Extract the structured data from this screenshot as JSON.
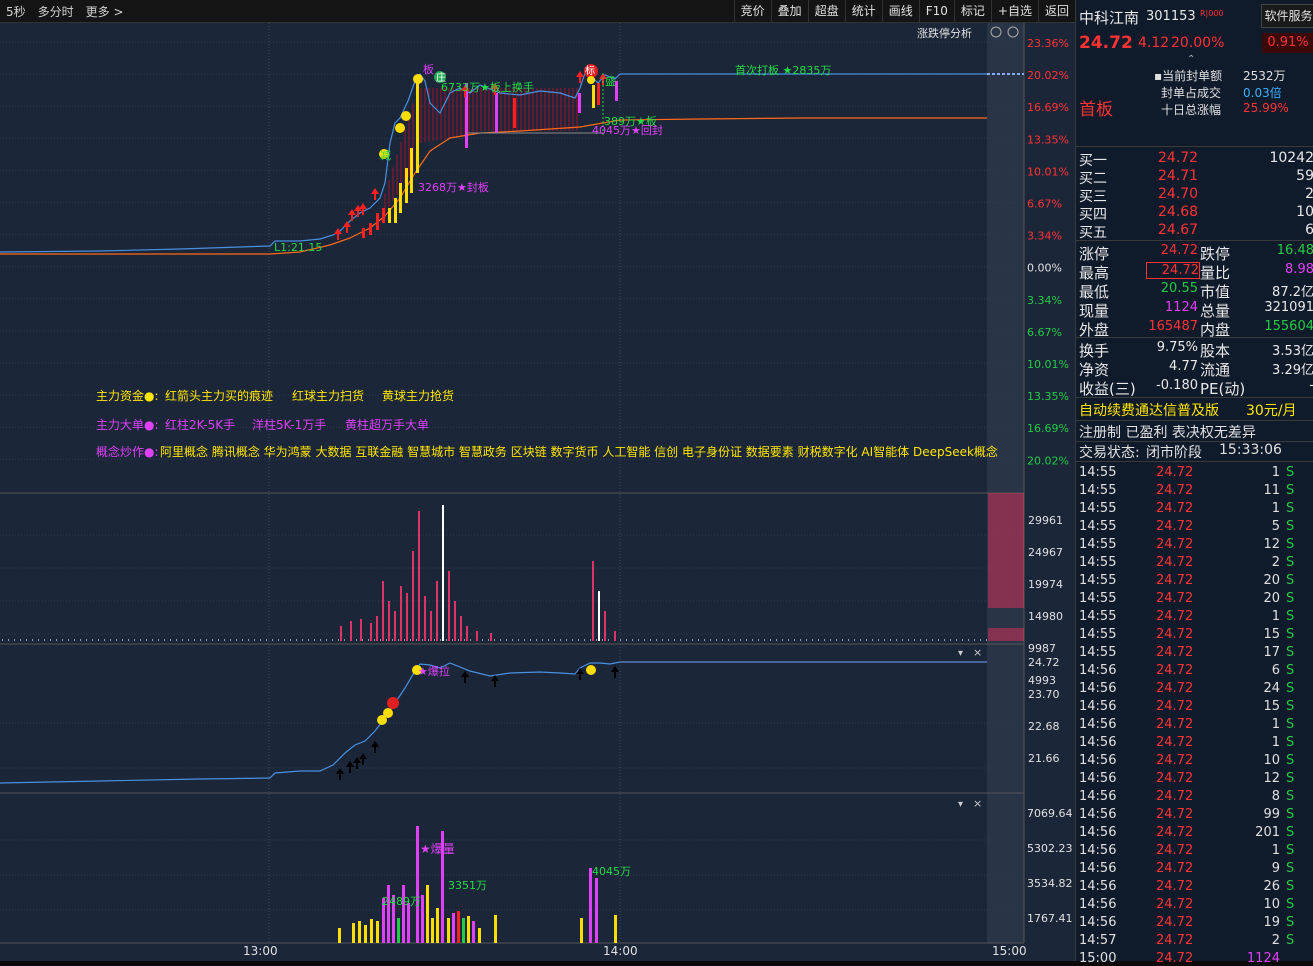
{
  "toolbar": {
    "period": "5秒",
    "multi_period": "多分时",
    "more": "更多 >",
    "buttons": [
      "竞价",
      "叠加",
      "超盘",
      "统计",
      "画线",
      "F10",
      "标记",
      "+自选",
      "返回"
    ]
  },
  "chart": {
    "limit_label": "涨跌停分析",
    "price_axis": [
      "23.36%",
      "20.02%",
      "16.69%",
      "13.35%",
      "10.01%",
      "6.67%",
      "3.34%",
      "0.00%",
      "3.34%",
      "6.67%",
      "10.01%",
      "13.35%",
      "16.69%",
      "20.02%"
    ],
    "volume_axis": [
      "29961",
      "24967",
      "19974",
      "14980",
      "9987",
      "4993"
    ],
    "sub1_axis": [
      "24.72",
      "23.70",
      "22.68",
      "21.66"
    ],
    "sub2_axis": [
      "7069.64",
      "5302.23",
      "3534.82",
      "1767.41"
    ],
    "time_axis": [
      "13:00",
      "14:00",
      "15:00"
    ],
    "annotations": {
      "first_board": "首次打板 ★2835万",
      "board_turnover": "6733万★板上换手",
      "seal_board": "3268万★封板",
      "reseal1": "389万★板",
      "reseal2": "4045万★回封",
      "ll": "L1:21.15",
      "tag_zhuang": "庄",
      "tag_ban": "板",
      "tag_sheng": "盛",
      "tag_biao": "标",
      "tag_jian": "减",
      "bao_la": "★爆拉",
      "bao_liang": "★爆量",
      "v1": "2489万",
      "v2": "3351万",
      "v3": "4045万"
    },
    "legend": {
      "line1_title": "主力资金●:",
      "line1_items": [
        "红箭头主力买的痕迹",
        "红球主力扫货",
        "黄球主力抢货"
      ],
      "line2_title": "主力大单●:",
      "line2_items": [
        "红柱2K-5K手",
        "洋柱5K-1万手",
        "黄柱超万手大单"
      ],
      "line3_title": "概念炒作●:",
      "line3_text": "阿里概念 腾讯概念 华为鸿蒙 大数据 互联金融 智慧城市 智慧政务 区块链 数字货币 人工智能 信创 电子身份证 数据要素 财税数字化 AI智能体 DeepSeek概念"
    }
  },
  "stock": {
    "name": "中科江南",
    "code": "301153",
    "badge": "R|000",
    "service": "软件服务",
    "service_pct": "0.91%",
    "price": "24.72",
    "change": "4.12",
    "change_pct": "20.00%",
    "first_board": "首板",
    "seal_amount_label": "当前封单额",
    "seal_amount": "2532万",
    "seal_ratio_label": "封单占成交",
    "seal_ratio": "0.03倍",
    "ten_day_label": "十日总涨幅",
    "ten_day": "25.99%"
  },
  "order_book": [
    {
      "label": "买一",
      "price": "24.72",
      "vol": "10242"
    },
    {
      "label": "买二",
      "price": "24.71",
      "vol": "59"
    },
    {
      "label": "买三",
      "price": "24.70",
      "vol": "2"
    },
    {
      "label": "买四",
      "price": "24.68",
      "vol": "10"
    },
    {
      "label": "买五",
      "price": "24.67",
      "vol": "6"
    }
  ],
  "stats": [
    {
      "l1": "涨停",
      "v1": "24.72",
      "l2": "跌停",
      "v2": "16.48"
    },
    {
      "l1": "最高",
      "v1": "24.72",
      "l2": "量比",
      "v2": "8.98"
    },
    {
      "l1": "最低",
      "v1": "20.55",
      "l2": "市值",
      "v2": "87.2亿"
    },
    {
      "l1": "现量",
      "v1": "1124",
      "l2": "总量",
      "v2": "321091"
    },
    {
      "l1": "外盘",
      "v1": "165487",
      "l2": "内盘",
      "v2": "155604"
    }
  ],
  "stats2": [
    {
      "l1": "换手",
      "v1": "9.75%",
      "l2": "股本",
      "v2": "3.53亿"
    },
    {
      "l1": "净资",
      "v1": "4.77",
      "l2": "流通",
      "v2": "3.29亿"
    },
    {
      "l1": "收益(三)",
      "v1": "-0.180",
      "l2": "PE(动)",
      "v2": "-"
    }
  ],
  "promo": {
    "text": "自动续费通达信普及版",
    "price": "30元/月"
  },
  "tags": "注册制 已盈利 表决权无差异",
  "trade_status": {
    "label": "交易状态:",
    "value": "闭市阶段",
    "time": "15:33:06"
  },
  "ticks": [
    {
      "t": "14:55",
      "p": "24.72",
      "v": "1",
      "s": "S"
    },
    {
      "t": "14:55",
      "p": "24.72",
      "v": "11",
      "s": "S"
    },
    {
      "t": "14:55",
      "p": "24.72",
      "v": "1",
      "s": "S"
    },
    {
      "t": "14:55",
      "p": "24.72",
      "v": "5",
      "s": "S"
    },
    {
      "t": "14:55",
      "p": "24.72",
      "v": "12",
      "s": "S"
    },
    {
      "t": "14:55",
      "p": "24.72",
      "v": "2",
      "s": "S"
    },
    {
      "t": "14:55",
      "p": "24.72",
      "v": "20",
      "s": "S"
    },
    {
      "t": "14:55",
      "p": "24.72",
      "v": "20",
      "s": "S"
    },
    {
      "t": "14:55",
      "p": "24.72",
      "v": "1",
      "s": "S"
    },
    {
      "t": "14:55",
      "p": "24.72",
      "v": "15",
      "s": "S"
    },
    {
      "t": "14:55",
      "p": "24.72",
      "v": "17",
      "s": "S"
    },
    {
      "t": "14:56",
      "p": "24.72",
      "v": "6",
      "s": "S"
    },
    {
      "t": "14:56",
      "p": "24.72",
      "v": "24",
      "s": "S"
    },
    {
      "t": "14:56",
      "p": "24.72",
      "v": "15",
      "s": "S"
    },
    {
      "t": "14:56",
      "p": "24.72",
      "v": "1",
      "s": "S"
    },
    {
      "t": "14:56",
      "p": "24.72",
      "v": "1",
      "s": "S"
    },
    {
      "t": "14:56",
      "p": "24.72",
      "v": "10",
      "s": "S"
    },
    {
      "t": "14:56",
      "p": "24.72",
      "v": "12",
      "s": "S"
    },
    {
      "t": "14:56",
      "p": "24.72",
      "v": "8",
      "s": "S"
    },
    {
      "t": "14:56",
      "p": "24.72",
      "v": "99",
      "s": "S"
    },
    {
      "t": "14:56",
      "p": "24.72",
      "v": "201",
      "s": "S"
    },
    {
      "t": "14:56",
      "p": "24.72",
      "v": "1",
      "s": "S"
    },
    {
      "t": "14:56",
      "p": "24.72",
      "v": "9",
      "s": "S"
    },
    {
      "t": "14:56",
      "p": "24.72",
      "v": "26",
      "s": "S"
    },
    {
      "t": "14:56",
      "p": "24.72",
      "v": "10",
      "s": "S"
    },
    {
      "t": "14:56",
      "p": "24.72",
      "v": "19",
      "s": "S"
    },
    {
      "t": "14:57",
      "p": "24.72",
      "v": "2",
      "s": "S"
    },
    {
      "t": "15:00",
      "p": "24.72",
      "v": "1124",
      "s": ""
    }
  ]
}
